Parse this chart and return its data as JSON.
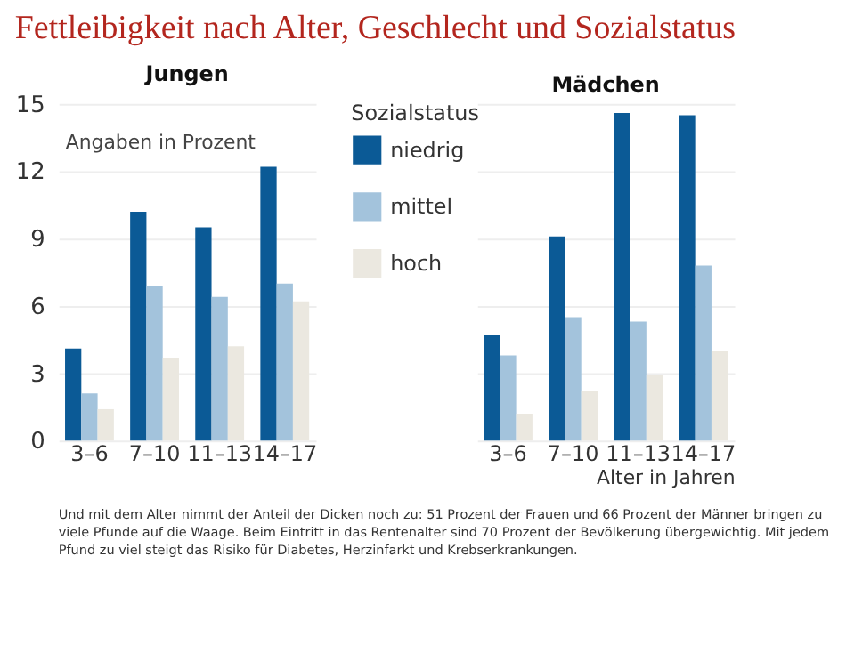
{
  "chart_data": [
    {
      "type": "bar",
      "title": "Fettleibigkeit nach Alter, Geschlecht und Sozialstatus",
      "subtitle": "Jungen",
      "categories": [
        "3–6",
        "7–10",
        "11–13",
        "14–17"
      ],
      "series": [
        {
          "name": "niedrig",
          "color": "#0b5a96",
          "values": [
            4.1,
            10.2,
            9.5,
            12.2
          ]
        },
        {
          "name": "mittel",
          "color": "#a3c3dc",
          "values": [
            2.1,
            6.9,
            6.4,
            7.0
          ]
        },
        {
          "name": "hoch",
          "color": "#ebe8e0",
          "values": [
            1.4,
            3.7,
            4.2,
            6.2
          ]
        }
      ],
      "ylim": [
        0,
        15
      ],
      "yticks": [
        0,
        3,
        6,
        9,
        12,
        15
      ],
      "grid": "y",
      "legend": "right",
      "legend_title": "Sozialstatus",
      "annotations": [
        "Angaben in Prozent"
      ]
    },
    {
      "type": "bar",
      "subtitle": "Mädchen",
      "categories": [
        "3–6",
        "7–10",
        "11–13",
        "14–17"
      ],
      "series": [
        {
          "name": "niedrig",
          "color": "#0b5a96",
          "values": [
            4.7,
            9.1,
            14.6,
            14.5
          ]
        },
        {
          "name": "mittel",
          "color": "#a3c3dc",
          "values": [
            3.8,
            5.5,
            5.3,
            7.8
          ]
        },
        {
          "name": "hoch",
          "color": "#ebe8e0",
          "values": [
            1.2,
            2.2,
            2.9,
            4.0
          ]
        }
      ],
      "ylim": [
        0,
        15
      ],
      "yticks": [
        0,
        3,
        6,
        9,
        12,
        15
      ],
      "grid": "y",
      "tick_labels": "x",
      "xlabel": "Alter in Jahren",
      "annotations": [
        "Und mit dem Alter nimmt der Anteil der Dicken noch zu: 51 Prozent der Frauen und 66 Prozent der Männer bringen zu viele Pfunde auf die Waage. Beim Eintritt in das Rentenalter sind 70 Prozent der Bevölkerung übergewichtig. Mit jedem Pfund zu viel steigt das Risiko für Diabetes, Herzinfarkt und Krebserkrankungen."
      ]
    }
  ]
}
